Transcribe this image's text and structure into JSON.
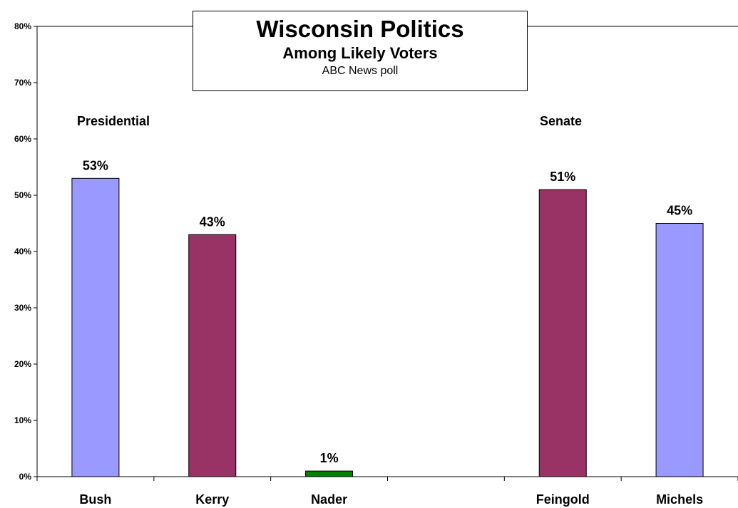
{
  "chart_data": {
    "type": "bar",
    "title": "Wisconsin Politics",
    "subtitle": "Among Likely Voters",
    "source": "ABC News poll",
    "categories": [
      "Bush",
      "Kerry",
      "Nader",
      "",
      "Feingold",
      "Michels"
    ],
    "values": [
      53,
      43,
      1,
      null,
      51,
      45
    ],
    "value_labels": [
      "53%",
      "43%",
      "1%",
      "",
      "51%",
      "45%"
    ],
    "bar_colors": [
      "#9999ff",
      "#993366",
      "#008000",
      null,
      "#993366",
      "#9999ff"
    ],
    "groups": [
      {
        "label": "Presidential",
        "categories": [
          "Bush",
          "Kerry",
          "Nader"
        ]
      },
      {
        "label": "Senate",
        "categories": [
          "Feingold",
          "Michels"
        ]
      }
    ],
    "ylim": [
      0,
      80
    ],
    "yticks": [
      "0%",
      "10%",
      "20%",
      "30%",
      "40%",
      "50%",
      "60%",
      "70%",
      "80%"
    ],
    "ytick_values": [
      0,
      10,
      20,
      30,
      40,
      50,
      60,
      70,
      80
    ],
    "xlabel": "",
    "ylabel": "",
    "grid": false,
    "legend": "none"
  }
}
